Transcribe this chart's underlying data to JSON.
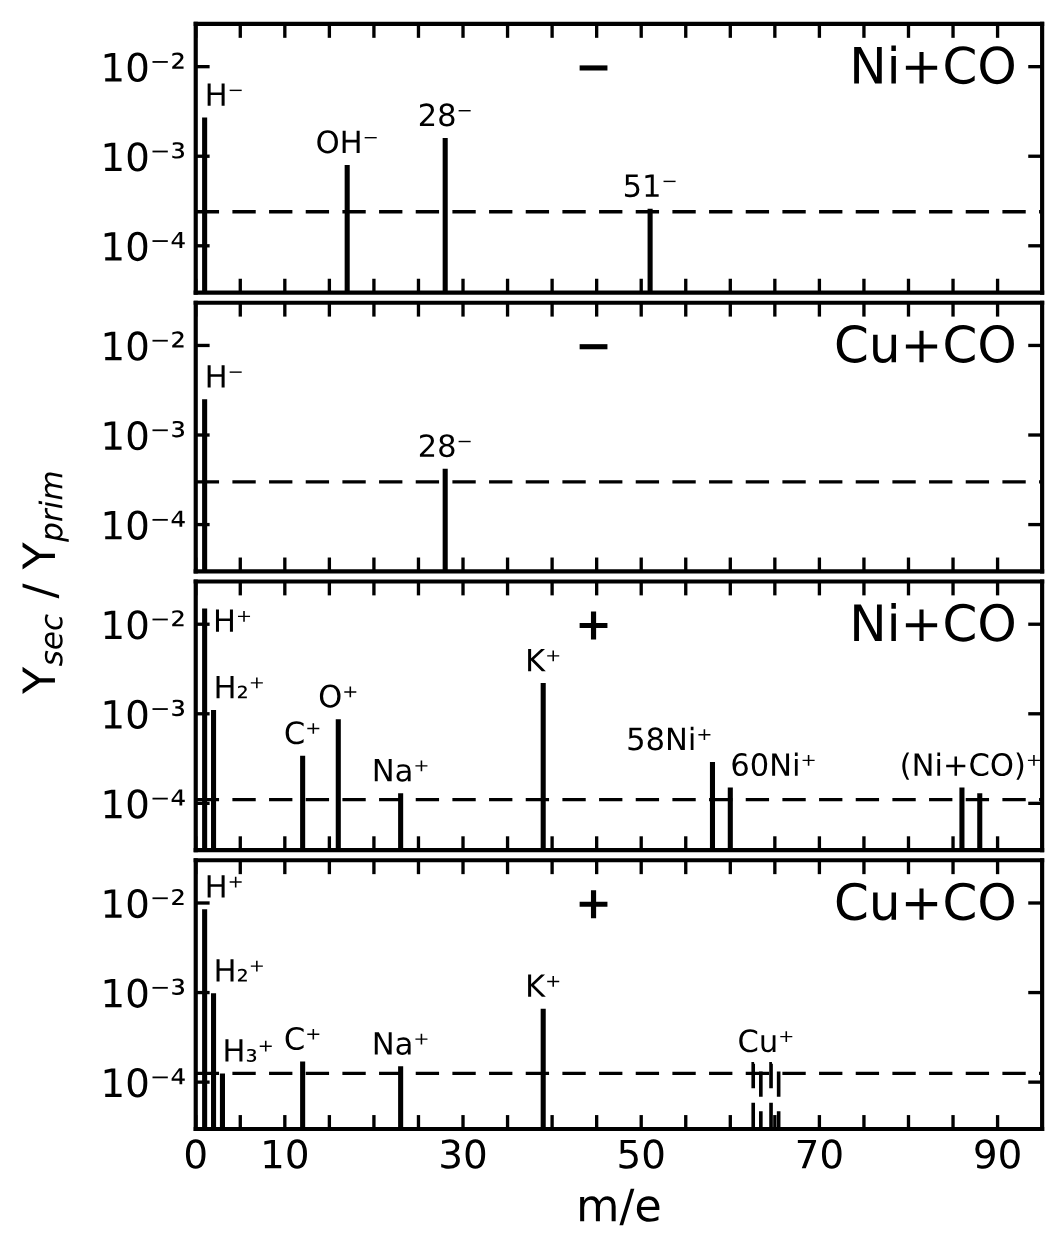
{
  "chart_data": [
    {
      "type": "bar",
      "title": "Ni+CO",
      "annotations": [
        "−",
        {
          "text": "H⁻",
          "x": 1,
          "y": 0.0027
        },
        {
          "text": "OH⁻",
          "x": 17,
          "y": 0.0008
        },
        {
          "text": "28⁻",
          "x": 28,
          "y": 0.0016
        },
        {
          "text": "51⁻",
          "x": 51,
          "y": 0.00026
        }
      ],
      "series": [
        {
          "color": "#000000",
          "x": [
            1,
            17,
            28,
            51
          ],
          "values": [
            0.0027,
            0.0008,
            0.0016,
            0.00026
          ]
        }
      ],
      "ref_lines": [
        {
          "axis": "y",
          "value": 0.00024,
          "line_style": "dashed",
          "color": "#000000"
        }
      ],
      "log": "y",
      "xlim": [
        0,
        95
      ],
      "ylim": [
        3e-05,
        0.03
      ],
      "xticks": [
        0,
        {
          "value": 5,
          "label": null
        },
        10,
        {
          "value": 15,
          "label": null
        },
        {
          "value": 20,
          "label": null
        },
        {
          "value": 25,
          "label": null
        },
        30,
        {
          "value": 35,
          "label": null
        },
        {
          "value": 40,
          "label": null
        },
        {
          "value": 45,
          "label": null
        },
        50,
        {
          "value": 55,
          "label": null
        },
        {
          "value": 60,
          "label": null
        },
        {
          "value": 65,
          "label": null
        },
        70,
        {
          "value": 75,
          "label": null
        },
        {
          "value": 80,
          "label": null
        },
        {
          "value": 85,
          "label": null
        },
        90
      ],
      "yticks": [
        {
          "value": 0.01,
          "label": "10⁻²"
        },
        {
          "value": 0.001,
          "label": "10⁻³"
        },
        {
          "value": 0.0001,
          "label": "10⁻⁴"
        }
      ],
      "tick_labels": "y",
      "grid": false
    },
    {
      "type": "bar",
      "title": "Cu+CO",
      "annotations": [
        "−",
        {
          "text": "H⁻",
          "x": 1,
          "y": 0.0025
        },
        {
          "text": "28⁻",
          "x": 28,
          "y": 0.00042
        }
      ],
      "series": [
        {
          "color": "#000000",
          "x": [
            1,
            28
          ],
          "values": [
            0.0025,
            0.00042
          ]
        }
      ],
      "ref_lines": [
        {
          "axis": "y",
          "value": 0.0003,
          "line_style": "dashed",
          "color": "#000000"
        }
      ],
      "log": "y",
      "xlim": [
        0,
        95
      ],
      "ylim": [
        3e-05,
        0.03
      ],
      "xticks": [
        0,
        {
          "value": 5,
          "label": null
        },
        10,
        {
          "value": 15,
          "label": null
        },
        {
          "value": 20,
          "label": null
        },
        {
          "value": 25,
          "label": null
        },
        30,
        {
          "value": 35,
          "label": null
        },
        {
          "value": 40,
          "label": null
        },
        {
          "value": 45,
          "label": null
        },
        50,
        {
          "value": 55,
          "label": null
        },
        {
          "value": 60,
          "label": null
        },
        {
          "value": 65,
          "label": null
        },
        70,
        {
          "value": 75,
          "label": null
        },
        {
          "value": 80,
          "label": null
        },
        {
          "value": 85,
          "label": null
        },
        90
      ],
      "yticks": [
        {
          "value": 0.01,
          "label": "10⁻²"
        },
        {
          "value": 0.001,
          "label": "10⁻³"
        },
        {
          "value": 0.0001,
          "label": "10⁻⁴"
        }
      ],
      "tick_labels": "y",
      "grid": false
    },
    {
      "type": "bar",
      "title": "Ni+CO",
      "ylabel": "Y$_{sec}$ / Y$_{prim}$",
      "annotations": [
        "+",
        {
          "text": "H⁺",
          "x": 1,
          "y": 0.015
        },
        {
          "text": "H₂⁺",
          "x": 2,
          "y": 0.0011
        },
        {
          "text": "C⁺",
          "x": 12,
          "y": 0.00034
        },
        {
          "text": "O⁺",
          "x": 16,
          "y": 0.00087
        },
        {
          "text": "Na⁺",
          "x": 23,
          "y": 0.00013
        },
        {
          "text": "K⁺",
          "x": 39,
          "y": 0.0022
        },
        {
          "text": "58Ni⁺",
          "x": 58,
          "y": 0.00029
        },
        {
          "text": "60Ni⁺",
          "x": 60,
          "y": 0.00015
        },
        {
          "text": "(Ni+CO)⁺",
          "x": 87,
          "y": 0.00015
        }
      ],
      "series": [
        {
          "color": "#000000",
          "x": [
            1,
            2,
            12,
            16,
            23,
            39,
            58,
            60,
            86,
            88
          ],
          "values": [
            0.015,
            0.0011,
            0.00034,
            0.00087,
            0.00013,
            0.0022,
            0.00029,
            0.00015,
            0.00015,
            0.00013
          ]
        }
      ],
      "ref_lines": [
        {
          "axis": "y",
          "value": 0.00011,
          "line_style": "dashed",
          "color": "#000000"
        }
      ],
      "log": "y",
      "xlim": [
        0,
        95
      ],
      "ylim": [
        3e-05,
        0.03
      ],
      "xticks": [
        0,
        {
          "value": 5,
          "label": null
        },
        10,
        {
          "value": 15,
          "label": null
        },
        {
          "value": 20,
          "label": null
        },
        {
          "value": 25,
          "label": null
        },
        30,
        {
          "value": 35,
          "label": null
        },
        {
          "value": 40,
          "label": null
        },
        {
          "value": 45,
          "label": null
        },
        50,
        {
          "value": 55,
          "label": null
        },
        {
          "value": 60,
          "label": null
        },
        {
          "value": 65,
          "label": null
        },
        70,
        {
          "value": 75,
          "label": null
        },
        {
          "value": 80,
          "label": null
        },
        {
          "value": 85,
          "label": null
        },
        90
      ],
      "yticks": [
        {
          "value": 0.01,
          "label": "10⁻²"
        },
        {
          "value": 0.001,
          "label": "10⁻³"
        },
        {
          "value": 0.0001,
          "label": "10⁻⁴"
        }
      ],
      "tick_labels": "y",
      "grid": false
    },
    {
      "type": "bar",
      "title": "Cu+CO",
      "xlabel": "m/e",
      "annotations": [
        "+",
        {
          "text": "H⁺",
          "x": 1,
          "y": 0.0085
        },
        {
          "text": "H₂⁺",
          "x": 2,
          "y": 0.00098
        },
        {
          "text": "H₃⁺",
          "x": 3,
          "y": 0.000125
        },
        {
          "text": "C⁺",
          "x": 12,
          "y": 0.00017
        },
        {
          "text": "Na⁺",
          "x": 23,
          "y": 0.00015
        },
        {
          "text": "K⁺",
          "x": 39,
          "y": 0.00066
        },
        {
          "text": "Cu⁺",
          "x": 64,
          "y": 0.00016
        }
      ],
      "series": [
        {
          "color": "#000000",
          "x": [
            1,
            2,
            3,
            12,
            23,
            39
          ],
          "values": [
            0.0085,
            0.00098,
            0.000125,
            0.00017,
            0.00015,
            0.00066
          ]
        },
        {
          "color": "#000000",
          "x": [
            63,
            65
          ],
          "values": [
            0.00016,
            0.00016
          ],
          "line_style": "dashed"
        }
      ],
      "ref_lines": [
        {
          "axis": "y",
          "value": 0.000125,
          "line_style": "dashed",
          "color": "#000000"
        }
      ],
      "log": "y",
      "xlim": [
        0,
        95
      ],
      "ylim": [
        3e-05,
        0.03
      ],
      "xticks": [
        0,
        {
          "value": 5,
          "label": null
        },
        {
          "value": 10,
          "label": "10"
        },
        {
          "value": 15,
          "label": null
        },
        {
          "value": 20,
          "label": null
        },
        {
          "value": 25,
          "label": null
        },
        30,
        {
          "value": 35,
          "label": null
        },
        {
          "value": 40,
          "label": null
        },
        {
          "value": 45,
          "label": null
        },
        50,
        {
          "value": 55,
          "label": null
        },
        {
          "value": 60,
          "label": null
        },
        {
          "value": 65,
          "label": null
        },
        70,
        {
          "value": 75,
          "label": null
        },
        {
          "value": 80,
          "label": null
        },
        {
          "value": 85,
          "label": null
        },
        90
      ],
      "yticks": [
        {
          "value": 0.01,
          "label": "10⁻²"
        },
        {
          "value": 0.001,
          "label": "10⁻³"
        },
        {
          "value": 0.0001,
          "label": "10⁻⁴"
        }
      ],
      "grid": false
    }
  ]
}
